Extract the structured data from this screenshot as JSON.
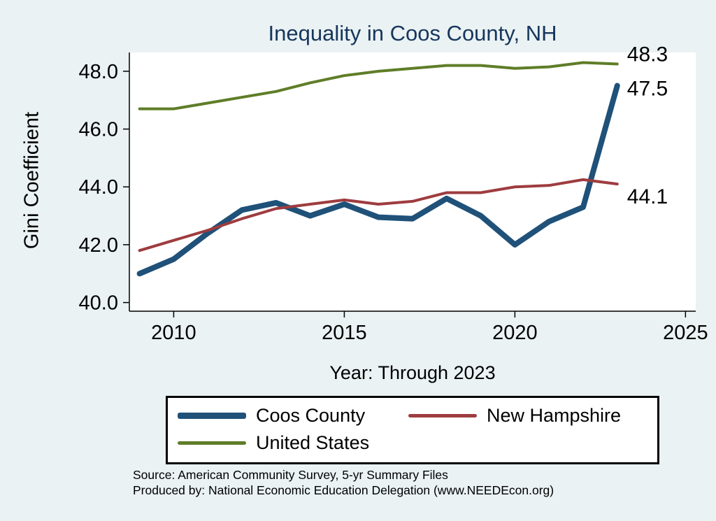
{
  "page": {
    "background_color": "#eaf2f3",
    "title_color": "#17365d"
  },
  "chart_data": {
    "type": "line",
    "title": "Inequality in Coos County, NH",
    "xlabel": "Year: Through 2023",
    "ylabel": "Gini Coefficient",
    "x": [
      2009,
      2010,
      2011,
      2012,
      2013,
      2014,
      2015,
      2016,
      2017,
      2018,
      2019,
      2020,
      2021,
      2022,
      2023
    ],
    "series": [
      {
        "name": "Coos County",
        "color": "#1f5179",
        "line_width": 8,
        "values": [
          41.0,
          41.5,
          42.4,
          43.2,
          43.45,
          43.0,
          43.4,
          42.95,
          42.9,
          43.6,
          43.0,
          42.0,
          42.8,
          43.3,
          47.5
        ],
        "end_label": "47.5"
      },
      {
        "name": "New Hampshire",
        "color": "#9e3c3f",
        "line_width": 4,
        "values": [
          41.8,
          42.15,
          42.5,
          42.9,
          43.25,
          43.4,
          43.55,
          43.4,
          43.5,
          43.8,
          43.8,
          44.0,
          44.05,
          44.25,
          44.1
        ],
        "end_label": "44.1"
      },
      {
        "name": "United States",
        "color": "#5f7d28",
        "line_width": 4,
        "values": [
          46.7,
          46.7,
          46.9,
          47.1,
          47.3,
          47.6,
          47.85,
          48.0,
          48.1,
          48.2,
          48.2,
          48.1,
          48.15,
          48.3,
          48.25
        ],
        "end_label": "48.3"
      }
    ],
    "xlim": [
      2008.7,
      2025.3
    ],
    "ylim": [
      39.7,
      48.65
    ],
    "x_ticks": [
      2010,
      2015,
      2020,
      2025
    ],
    "x_tick_labels": [
      "2010",
      "2015",
      "2020",
      "2025"
    ],
    "y_ticks": [
      40.0,
      42.0,
      44.0,
      46.0,
      48.0
    ],
    "y_tick_labels": [
      "40.0",
      "42.0",
      "44.0",
      "46.0",
      "48.0"
    ],
    "grid": false,
    "legend_position": "bottom"
  },
  "source": {
    "line1": "Source: American Community Survey, 5-yr Summary Files",
    "line2": "Produced by: National Economic Education Delegation (www.NEEDEcon.org)"
  }
}
